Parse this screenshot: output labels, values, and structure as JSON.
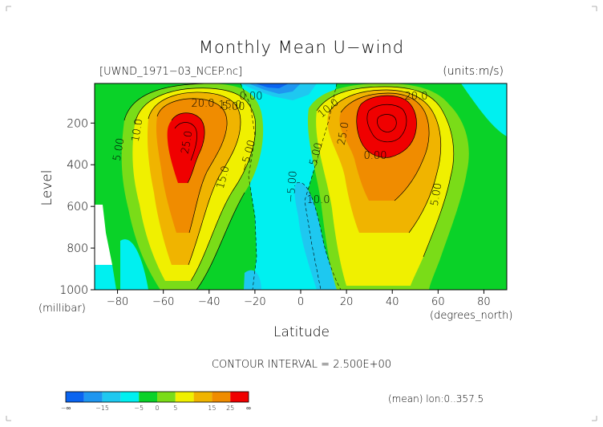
{
  "chart_data": {
    "type": "heatmap",
    "title": "Monthly Mean U−wind",
    "file_label": "[UWND_1971−03_NCEP.nc]",
    "units_label": "(units:m/s)",
    "xlabel": "Latitude",
    "ylabel": "Level",
    "xunit_label": "(degrees_north)",
    "yunit_label": "(millibar)",
    "xlim": [
      -90,
      90
    ],
    "ylim": [
      1000,
      10
    ],
    "x_ticks": [
      "−80",
      "−60",
      "−40",
      "−20",
      "0",
      "20",
      "40",
      "60",
      "80"
    ],
    "x_tick_values": [
      -80,
      -60,
      -40,
      -20,
      0,
      20,
      40,
      60,
      80
    ],
    "y_ticks": [
      "200",
      "400",
      "600",
      "800",
      "1000"
    ],
    "y_tick_values": [
      200,
      400,
      600,
      800,
      1000
    ],
    "contour_interval_text": "CONTOUR INTERVAL = 2.500E+00",
    "region_note": "(mean) lon:0..357.5",
    "contour_labels": [
      "20.0",
      "15.0",
      "10.0",
      "5.00",
      "25.0",
      "0.00",
      "−5.00",
      "−5.00",
      "15.0",
      "10.0",
      "20.0",
      "25.0",
      "0.00",
      "5.00",
      "10.0",
      "5.00",
      "5.00"
    ],
    "jets": [
      {
        "lat": -53,
        "level": 250,
        "peak": 27.5
      },
      {
        "lat": 33,
        "level": 200,
        "peak": 32.5
      }
    ],
    "colorbar": {
      "bins": [
        {
          "min": "-∞",
          "max": -15,
          "color": "#0a64f0"
        },
        {
          "min": -15,
          "max": -10,
          "color": "#1e96f0"
        },
        {
          "min": -10,
          "max": -5,
          "color": "#1ec8f0"
        },
        {
          "min": -5,
          "max": 0,
          "color": "#00f0f0"
        },
        {
          "min": 0,
          "max": 5,
          "color": "#0ad228"
        },
        {
          "min": 5,
          "max": 10,
          "color": "#7adc18"
        },
        {
          "min": 10,
          "max": 15,
          "color": "#f0f000"
        },
        {
          "min": 15,
          "max": 20,
          "color": "#f0b400"
        },
        {
          "min": 20,
          "max": 25,
          "color": "#f08c00"
        },
        {
          "min": 25,
          "max": "∞",
          "color": "#f00000"
        }
      ],
      "tick_labels": [
        "−∞",
        "−15",
        "−5",
        "0",
        "5",
        "15",
        "25",
        "∞"
      ],
      "tick_values": [
        "-inf",
        -15,
        -5,
        0,
        5,
        15,
        25,
        "inf"
      ]
    }
  }
}
